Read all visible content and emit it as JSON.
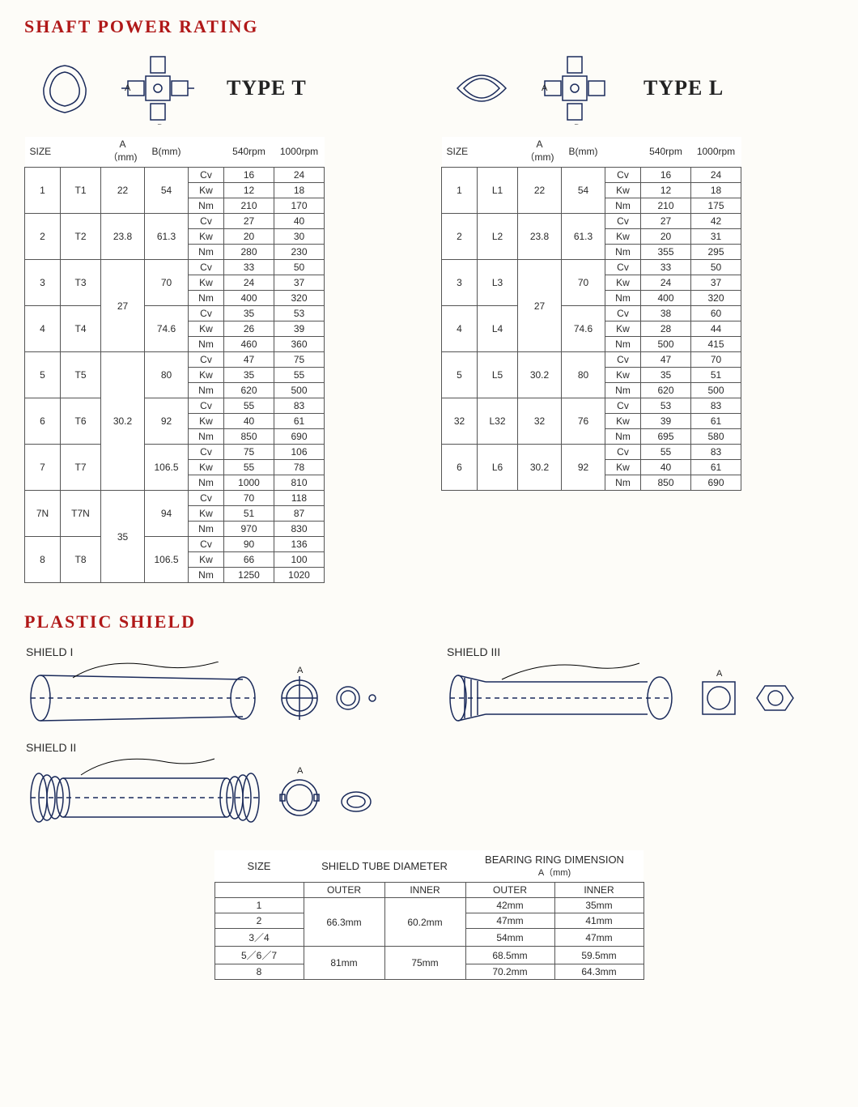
{
  "headings": {
    "shaft": "SHAFT POWER RATING",
    "plastic": "PLASTIC SHIELD"
  },
  "typeLabels": {
    "t": "TYPE T",
    "l": "TYPE L"
  },
  "columns": {
    "size": "SIZE",
    "a": "A（mm)",
    "b": "B(mm)",
    "rpm540": "540rpm",
    "rpm1000": "1000rpm"
  },
  "units": [
    "Cv",
    "Kw",
    "Nm"
  ],
  "typeT": [
    {
      "size": "1",
      "code": "T1",
      "a": "22",
      "b": "54",
      "v": [
        [
          "16",
          "24"
        ],
        [
          "12",
          "18"
        ],
        [
          "210",
          "170"
        ]
      ]
    },
    {
      "size": "2",
      "code": "T2",
      "a": "23.8",
      "b": "61.3",
      "v": [
        [
          "27",
          "40"
        ],
        [
          "20",
          "30"
        ],
        [
          "280",
          "230"
        ]
      ]
    },
    {
      "size": "3",
      "code": "T3",
      "a": "27",
      "b": "70",
      "v": [
        [
          "33",
          "50"
        ],
        [
          "24",
          "37"
        ],
        [
          "400",
          "320"
        ]
      ],
      "aSpan": 2
    },
    {
      "size": "4",
      "code": "T4",
      "a": null,
      "b": "74.6",
      "v": [
        [
          "35",
          "53"
        ],
        [
          "26",
          "39"
        ],
        [
          "460",
          "360"
        ]
      ]
    },
    {
      "size": "5",
      "code": "T5",
      "a": "30.2",
      "b": "80",
      "v": [
        [
          "47",
          "75"
        ],
        [
          "35",
          "55"
        ],
        [
          "620",
          "500"
        ]
      ],
      "aSpan": 3
    },
    {
      "size": "6",
      "code": "T6",
      "a": null,
      "b": "92",
      "v": [
        [
          "55",
          "83"
        ],
        [
          "40",
          "61"
        ],
        [
          "850",
          "690"
        ]
      ]
    },
    {
      "size": "7",
      "code": "T7",
      "a": null,
      "b": "106.5",
      "v": [
        [
          "75",
          "106"
        ],
        [
          "55",
          "78"
        ],
        [
          "1000",
          "810"
        ]
      ]
    },
    {
      "size": "7N",
      "code": "T7N",
      "a": "35",
      "b": "94",
      "v": [
        [
          "70",
          "118"
        ],
        [
          "51",
          "87"
        ],
        [
          "970",
          "830"
        ]
      ],
      "aSpan": 2
    },
    {
      "size": "8",
      "code": "T8",
      "a": null,
      "b": "106.5",
      "v": [
        [
          "90",
          "136"
        ],
        [
          "66",
          "100"
        ],
        [
          "1250",
          "1020"
        ]
      ]
    }
  ],
  "typeL": [
    {
      "size": "1",
      "code": "L1",
      "a": "22",
      "b": "54",
      "v": [
        [
          "16",
          "24"
        ],
        [
          "12",
          "18"
        ],
        [
          "210",
          "175"
        ]
      ]
    },
    {
      "size": "2",
      "code": "L2",
      "a": "23.8",
      "b": "61.3",
      "v": [
        [
          "27",
          "42"
        ],
        [
          "20",
          "31"
        ],
        [
          "355",
          "295"
        ]
      ]
    },
    {
      "size": "3",
      "code": "L3",
      "a": "27",
      "b": "70",
      "v": [
        [
          "33",
          "50"
        ],
        [
          "24",
          "37"
        ],
        [
          "400",
          "320"
        ]
      ],
      "aSpan": 2
    },
    {
      "size": "4",
      "code": "L4",
      "a": null,
      "b": "74.6",
      "v": [
        [
          "38",
          "60"
        ],
        [
          "28",
          "44"
        ],
        [
          "500",
          "415"
        ]
      ]
    },
    {
      "size": "5",
      "code": "L5",
      "a": "30.2",
      "b": "80",
      "v": [
        [
          "47",
          "70"
        ],
        [
          "35",
          "51"
        ],
        [
          "620",
          "500"
        ]
      ]
    },
    {
      "size": "32",
      "code": "L32",
      "a": "32",
      "b": "76",
      "v": [
        [
          "53",
          "83"
        ],
        [
          "39",
          "61"
        ],
        [
          "695",
          "580"
        ]
      ]
    },
    {
      "size": "6",
      "code": "L6",
      "a": "30.2",
      "b": "92",
      "v": [
        [
          "55",
          "83"
        ],
        [
          "40",
          "61"
        ],
        [
          "850",
          "690"
        ]
      ]
    }
  ],
  "shieldLabels": {
    "s1": "SHIELD I",
    "s2": "SHIELD II",
    "s3": "SHIELD III"
  },
  "shieldTable": {
    "headers": {
      "size": "SIZE",
      "tube": "SHIELD TUBE DIAMETER",
      "bearing": "BEARING RING DIMENSION",
      "bearingSub": "A（mm)",
      "outer": "OUTER",
      "inner": "INNER"
    },
    "rows": [
      {
        "size": "1",
        "tubeOuter": "66.3mm",
        "tubeInner": "60.2mm",
        "bOuter": "42mm",
        "bInner": "35mm",
        "tSpan": 3
      },
      {
        "size": "2",
        "tubeOuter": null,
        "tubeInner": null,
        "bOuter": "47mm",
        "bInner": "41mm"
      },
      {
        "size": "3／4",
        "tubeOuter": null,
        "tubeInner": null,
        "bOuter": "54mm",
        "bInner": "47mm"
      },
      {
        "size": "5／6／7",
        "tubeOuter": "81mm",
        "tubeInner": "75mm",
        "bOuter": "68.5mm",
        "bInner": "59.5mm",
        "tSpan": 2
      },
      {
        "size": "8",
        "tubeOuter": null,
        "tubeInner": null,
        "bOuter": "70.2mm",
        "bInner": "64.3mm"
      }
    ]
  },
  "colors": {
    "heading": "#b01818",
    "border": "#555555",
    "diagram": "#1a2a5a",
    "background": "#fdfcf8"
  }
}
